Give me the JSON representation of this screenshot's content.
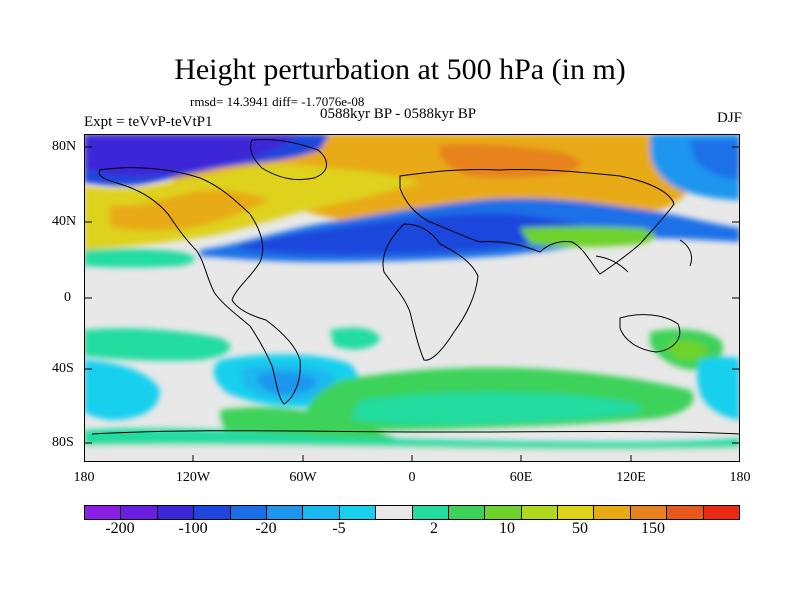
{
  "title": "Height perturbation at 500 hPa (in m)",
  "stats": "rmsd= 14.3941 diff= -1.7076e-08",
  "period": "0588kyr BP - 0588kyr BP",
  "experiment": "Expt = teVvP-teVtP1",
  "season": "DJF",
  "lat_ticks": [
    "80N",
    "40N",
    "0",
    "40S",
    "80S"
  ],
  "lon_ticks": [
    "180",
    "120W",
    "60W",
    "0",
    "60E",
    "120E",
    "180"
  ],
  "colorbar": {
    "labels": [
      "-200",
      "-100",
      "-20",
      "-5",
      "2",
      "10",
      "50",
      "150"
    ],
    "colors": [
      "#8c1ee6",
      "#6a1ee0",
      "#3c28d8",
      "#1e46dc",
      "#1a6fe8",
      "#1e96ee",
      "#1cb8f0",
      "#18d0ee",
      "#e8e8e8",
      "#24dca0",
      "#3cd25a",
      "#6ed22c",
      "#b0d81e",
      "#ded21a",
      "#e8aa14",
      "#e8821c",
      "#e85a1c",
      "#ea2a12"
    ]
  }
}
